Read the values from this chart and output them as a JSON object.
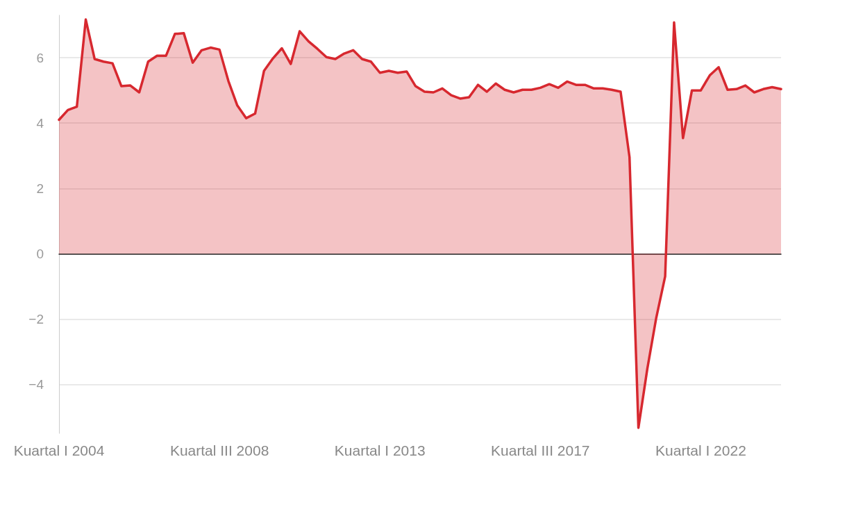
{
  "chart_data": {
    "type": "area",
    "categories": [
      "Kuartal I 2004",
      null,
      null,
      null,
      null,
      null,
      null,
      null,
      null,
      null,
      null,
      null,
      null,
      null,
      null,
      null,
      null,
      null,
      "Kuartal III 2008",
      null,
      null,
      null,
      null,
      null,
      null,
      null,
      null,
      null,
      null,
      null,
      null,
      null,
      null,
      null,
      null,
      null,
      "Kuartal I 2013",
      null,
      null,
      null,
      null,
      null,
      null,
      null,
      null,
      null,
      null,
      null,
      null,
      null,
      null,
      null,
      null,
      null,
      "Kuartal III 2017",
      null,
      null,
      null,
      null,
      null,
      null,
      null,
      null,
      null,
      null,
      null,
      null,
      null,
      null,
      null,
      null,
      null,
      "Kuartal I 2022",
      null,
      null,
      null,
      null,
      null,
      null,
      null,
      null,
      null
    ],
    "series": [
      {
        "color": "#d7282f",
        "values": [
          4.1,
          4.4,
          4.5,
          7.17,
          5.96,
          5.88,
          5.83,
          5.13,
          5.15,
          4.94,
          5.88,
          6.06,
          6.06,
          6.73,
          6.75,
          5.85,
          6.23,
          6.31,
          6.25,
          5.29,
          4.54,
          4.15,
          4.29,
          5.6,
          5.98,
          6.29,
          5.81,
          6.81,
          6.5,
          6.27,
          6.02,
          5.96,
          6.13,
          6.23,
          5.96,
          5.88,
          5.54,
          5.6,
          5.54,
          5.58,
          5.13,
          4.96,
          4.94,
          5.06,
          4.85,
          4.75,
          4.79,
          5.17,
          4.96,
          5.21,
          5.02,
          4.94,
          5.02,
          5.02,
          5.08,
          5.19,
          5.08,
          5.27,
          5.17,
          5.17,
          5.06,
          5.06,
          5.02,
          4.96,
          2.96,
          -5.33,
          -3.52,
          -1.96,
          -0.69,
          7.08,
          3.54,
          5.0,
          5.0,
          5.46,
          5.71,
          5.02,
          5.04,
          5.15,
          4.94,
          5.04,
          5.1,
          5.04
        ]
      }
    ],
    "yticks": [
      {
        "value": -4,
        "label": "−4"
      },
      {
        "value": -2,
        "label": "−2"
      },
      0,
      2,
      4,
      6
    ],
    "ylim": [
      -5.5,
      7.3
    ],
    "grid": "y",
    "marker": "none",
    "line_style": "solid"
  }
}
